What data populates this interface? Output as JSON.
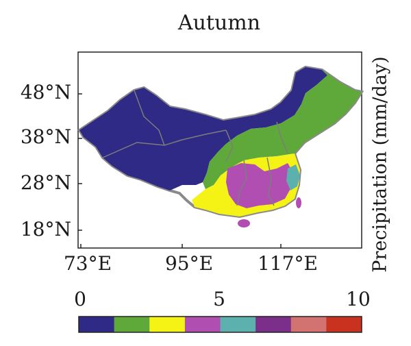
{
  "title": "Autumn",
  "units_label": "Precipitation (mm/day)",
  "latitude_labels": [
    "48°N",
    "38°N",
    "28°N",
    "18°N"
  ],
  "longitude_labels": [
    "73°E",
    "95°E",
    "117°E"
  ],
  "colorbar": {
    "tick_labels": [
      "0",
      "5",
      "10"
    ],
    "min": 0,
    "max": 10,
    "colors": [
      "#2e2a86",
      "#5fa83a",
      "#f5f216",
      "#b04fb1",
      "#5cb0ad",
      "#7b2f8b",
      "#d27372",
      "#c8321f"
    ]
  },
  "regions": [
    {
      "name": "north-west-china",
      "color_index": 0
    },
    {
      "name": "north-china-belt",
      "color_index": 1
    },
    {
      "name": "south-west-china",
      "color_index": 2
    },
    {
      "name": "south-china",
      "color_index": 3
    },
    {
      "name": "east-china-coast",
      "color_index": 4
    }
  ]
}
